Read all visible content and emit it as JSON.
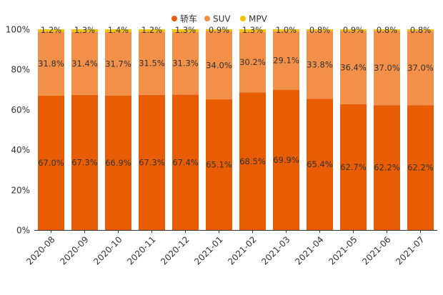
{
  "chart_data": {
    "type": "bar",
    "stacked": true,
    "percent": true,
    "categories": [
      "2020-08",
      "2020-09",
      "2020-10",
      "2020-11",
      "2020-12",
      "2021-01",
      "2021-02",
      "2021-03",
      "2021-04",
      "2021-05",
      "2021-06",
      "2021-07"
    ],
    "series": [
      {
        "name": "轿车",
        "color": "#e85d04",
        "values": [
          67.0,
          67.3,
          66.9,
          67.3,
          67.4,
          65.1,
          68.5,
          69.9,
          65.4,
          62.7,
          62.2,
          62.2
        ],
        "labels": [
          "67.0%",
          "67.3%",
          "66.9%",
          "67.3%",
          "67.4%",
          "65.1%",
          "68.5%",
          "69.9%",
          "65.4%",
          "62.7%",
          "62.2%",
          "62.2%"
        ]
      },
      {
        "name": "SUV",
        "color": "#f2904a",
        "values": [
          31.8,
          31.4,
          31.7,
          31.5,
          31.3,
          34.0,
          30.2,
          29.1,
          33.8,
          36.4,
          37.0,
          37.0
        ],
        "labels": [
          "31.8%",
          "31.4%",
          "31.7%",
          "31.5%",
          "31.3%",
          "34.0%",
          "30.2%",
          "29.1%",
          "33.8%",
          "36.4%",
          "37.0%",
          "37.0%"
        ]
      },
      {
        "name": "MPV",
        "color": "#f5c400",
        "values": [
          1.2,
          1.3,
          1.4,
          1.2,
          1.3,
          0.9,
          1.3,
          1.0,
          0.8,
          0.9,
          0.8,
          0.8
        ],
        "labels": [
          "1.2%",
          "1.3%",
          "1.4%",
          "1.2%",
          "1.3%",
          "0.9%",
          "1.3%",
          "1.0%",
          "0.8%",
          "0.9%",
          "0.8%",
          "0.8%"
        ]
      }
    ],
    "ylim": [
      0,
      100
    ],
    "yticks": [
      "0%",
      "20%",
      "40%",
      "60%",
      "80%",
      "100%"
    ],
    "ytick_values": [
      0,
      20,
      40,
      60,
      80,
      100
    ],
    "grid": false,
    "legend_position": "top-center",
    "title": "",
    "xlabel": "",
    "ylabel": ""
  }
}
